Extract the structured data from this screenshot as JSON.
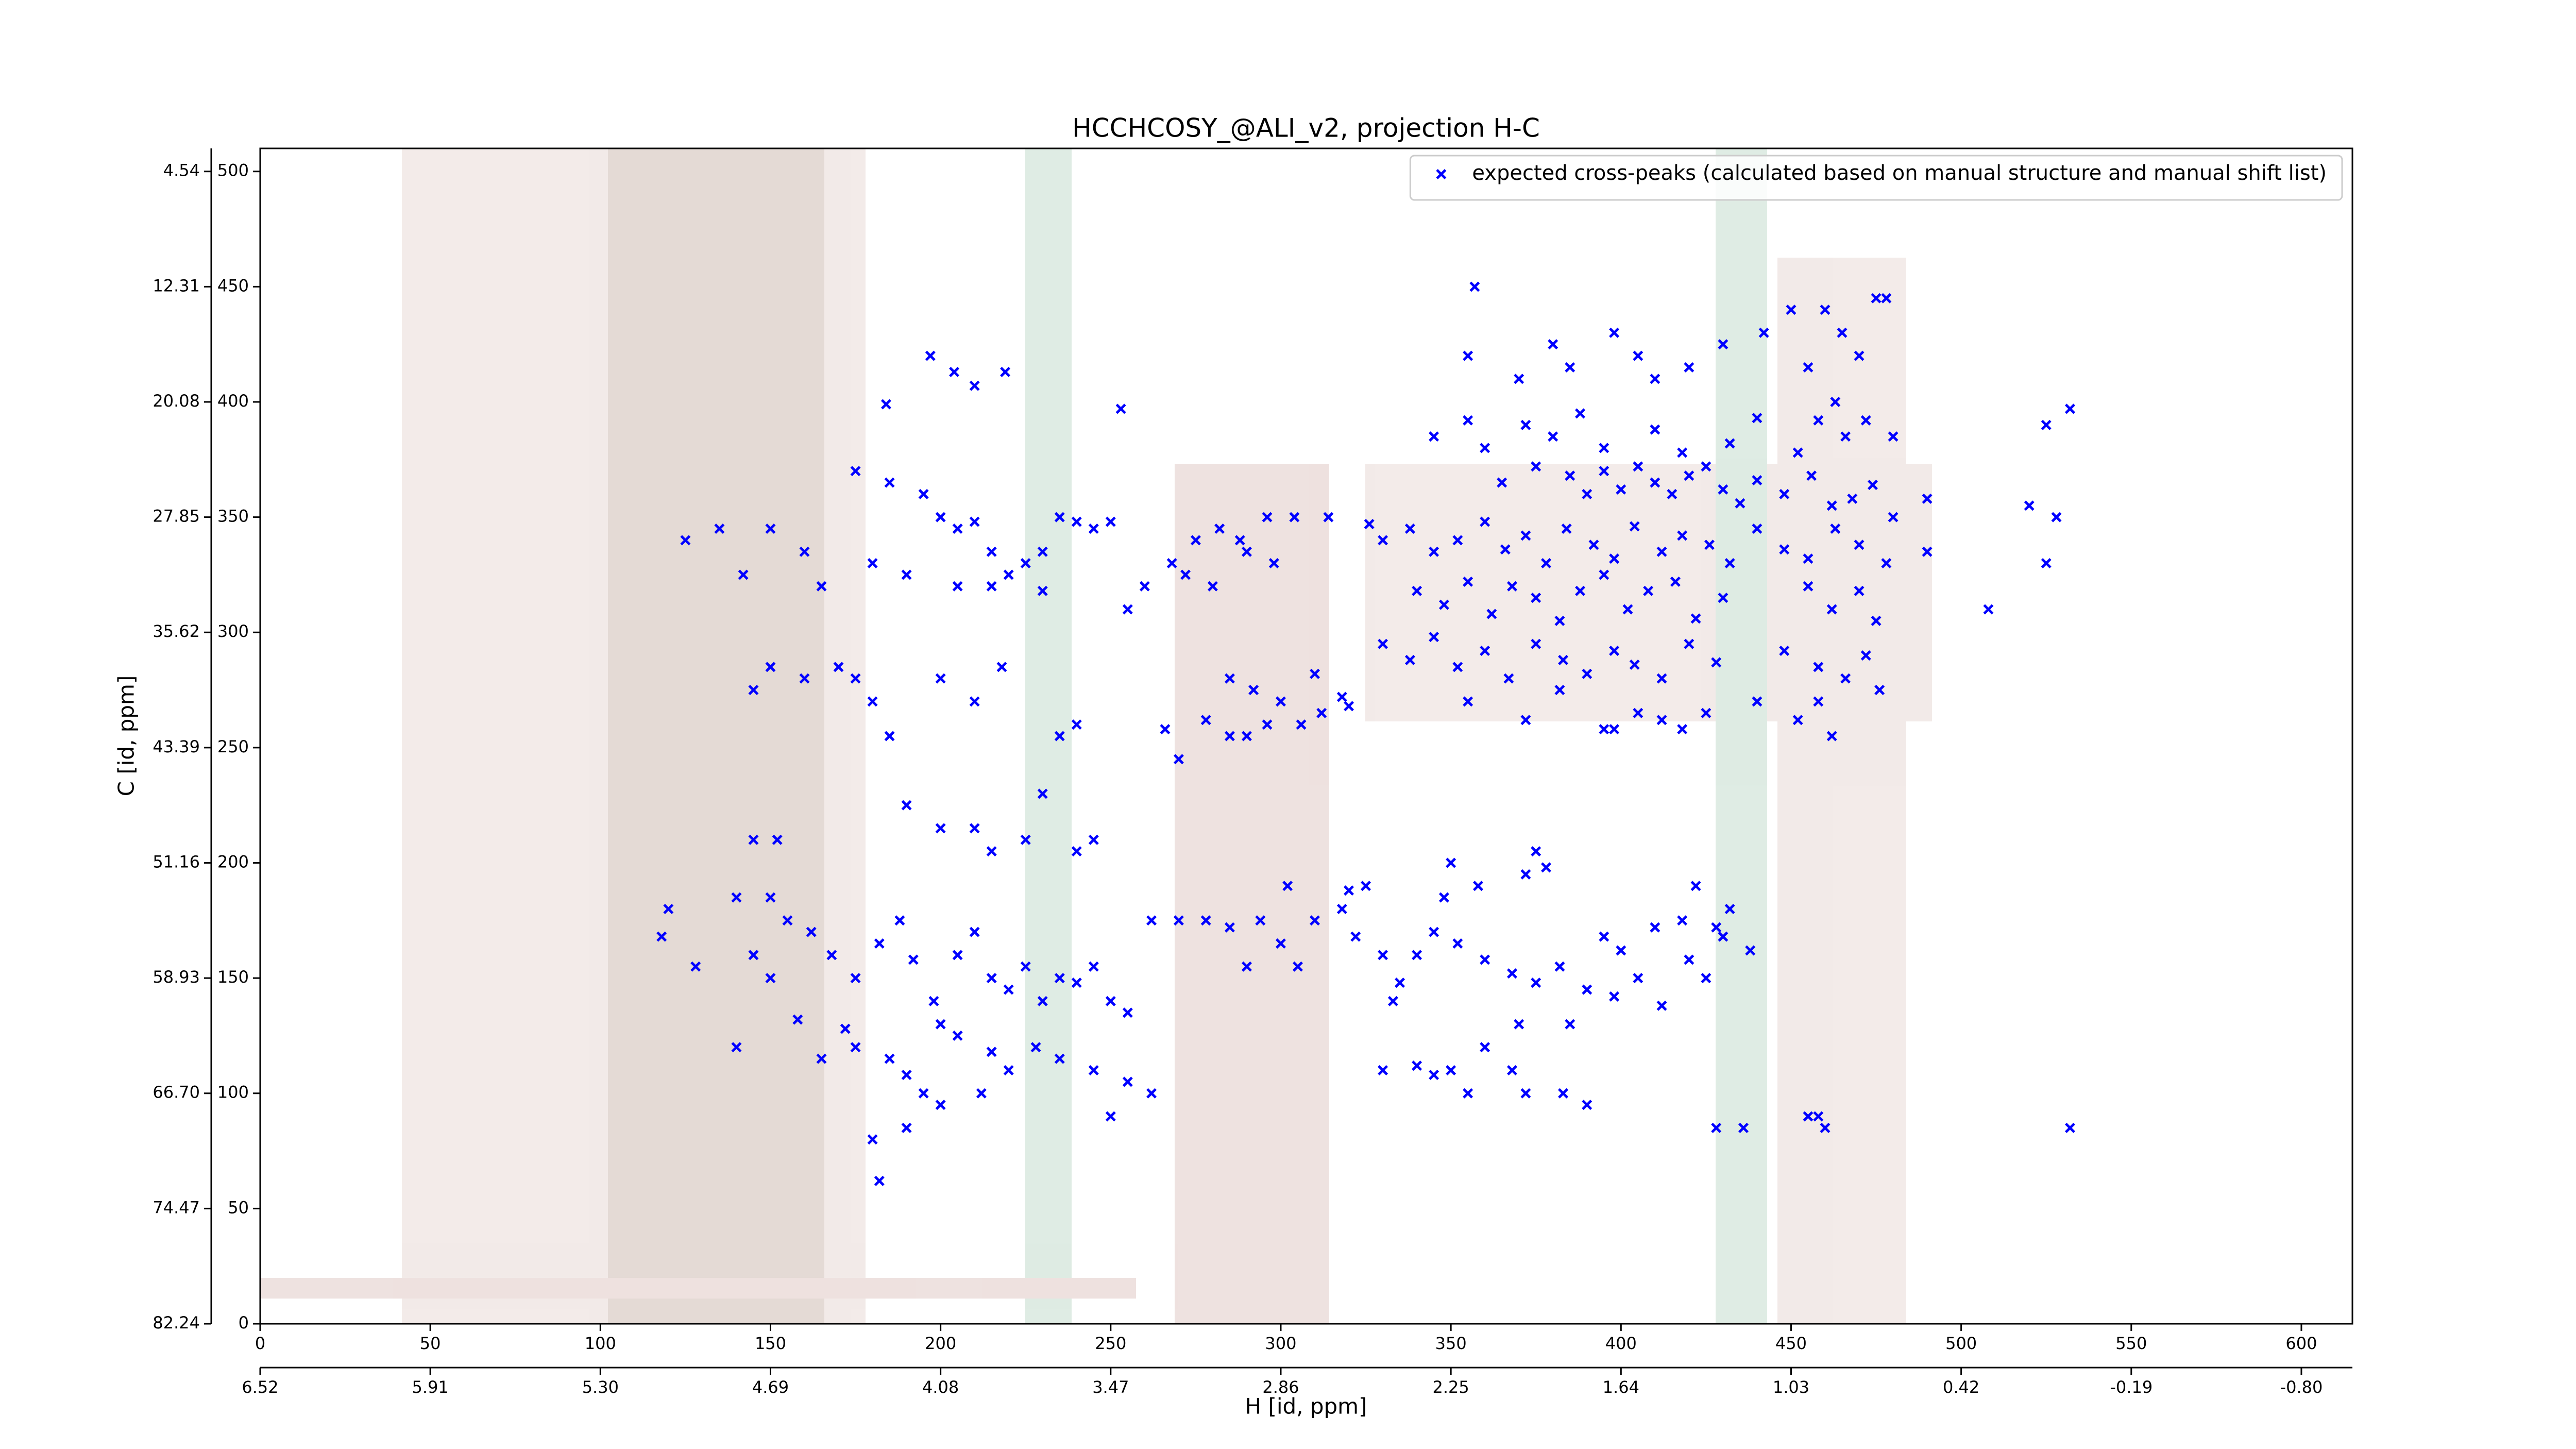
{
  "chart_data": {
    "type": "scatter",
    "title": "HCCHCOSY_@ALI_v2, projection H-C",
    "xlabel": "H [id, ppm]",
    "ylabel": "C [id, ppm]",
    "xlim": [
      0,
      615
    ],
    "ylim": [
      0,
      510
    ],
    "xticks": [
      0,
      50,
      100,
      150,
      200,
      250,
      300,
      350,
      400,
      450,
      500,
      550,
      600
    ],
    "yticks": [
      0,
      50,
      100,
      150,
      200,
      250,
      300,
      350,
      400,
      450,
      500
    ],
    "x2ticks": [
      {
        "value": 0,
        "label": "6.52"
      },
      {
        "value": 50,
        "label": "5.91"
      },
      {
        "value": 100,
        "label": "5.30"
      },
      {
        "value": 150,
        "label": "4.69"
      },
      {
        "value": 200,
        "label": "4.08"
      },
      {
        "value": 250,
        "label": "3.47"
      },
      {
        "value": 300,
        "label": "2.86"
      },
      {
        "value": 350,
        "label": "2.25"
      },
      {
        "value": 400,
        "label": "1.64"
      },
      {
        "value": 450,
        "label": "1.03"
      },
      {
        "value": 500,
        "label": "0.42"
      },
      {
        "value": 550,
        "label": "-0.19"
      },
      {
        "value": 600,
        "label": "-0.80"
      }
    ],
    "y2ticks": [
      {
        "value": 0,
        "label": "82.24"
      },
      {
        "value": 50,
        "label": "74.47"
      },
      {
        "value": 100,
        "label": "66.70"
      },
      {
        "value": 150,
        "label": "58.93"
      },
      {
        "value": 200,
        "label": "51.16"
      },
      {
        "value": 250,
        "label": "43.39"
      },
      {
        "value": 300,
        "label": "35.62"
      },
      {
        "value": 350,
        "label": "27.85"
      },
      {
        "value": 400,
        "label": "20.08"
      },
      {
        "value": 450,
        "label": "12.31"
      },
      {
        "value": 500,
        "label": "4.54"
      }
    ],
    "grid": false,
    "legend": "upper right",
    "series": [
      {
        "name": "expected cross-peaks (calculated based on manual structure and manual shift list)",
        "color": "#0000ff",
        "x": [
          357,
          253,
          532,
          532,
          197,
          204,
          210,
          219,
          184,
          355,
          370,
          380,
          385,
          398,
          405,
          410,
          420,
          430,
          442,
          450,
          460,
          465,
          470,
          475,
          478,
          455,
          463,
          345,
          355,
          360,
          372,
          380,
          388,
          395,
          410,
          418,
          432,
          440,
          452,
          458,
          466,
          472,
          480,
          525,
          365,
          375,
          385,
          390,
          395,
          400,
          405,
          410,
          415,
          420,
          425,
          430,
          435,
          440,
          448,
          456,
          462,
          468,
          474,
          480,
          490,
          520,
          528,
          330,
          338,
          345,
          352,
          360,
          366,
          372,
          378,
          384,
          392,
          398,
          404,
          412,
          418,
          426,
          432,
          440,
          448,
          455,
          463,
          470,
          478,
          490,
          525,
          340,
          348,
          355,
          362,
          368,
          375,
          382,
          388,
          395,
          402,
          408,
          416,
          422,
          430,
          455,
          462,
          470,
          475,
          508,
          330,
          338,
          345,
          352,
          360,
          367,
          375,
          383,
          390,
          398,
          404,
          412,
          420,
          428,
          448,
          458,
          466,
          472,
          476,
          355,
          372,
          382,
          395,
          398,
          405,
          412,
          418,
          425,
          440,
          452,
          458,
          462,
          275,
          282,
          288,
          296,
          304,
          314,
          326,
          290,
          298,
          268,
          272,
          280,
          260,
          255,
          285,
          292,
          300,
          310,
          318,
          306,
          296,
          278,
          285,
          290,
          270,
          266,
          312,
          320,
          320,
          318,
          325,
          310,
          302,
          278,
          285,
          294,
          300,
          262,
          270,
          290,
          305,
          322,
          330,
          335,
          340,
          345,
          348,
          350,
          358,
          372,
          375,
          378,
          352,
          360,
          368,
          375,
          382,
          390,
          398,
          405,
          412,
          420,
          425,
          430,
          395,
          400,
          410,
          418,
          428,
          438,
          432,
          422,
          385,
          360,
          368,
          372,
          383,
          390,
          350,
          345,
          340,
          355,
          330,
          333,
          370,
          428,
          436,
          455,
          458,
          460,
          195,
          200,
          205,
          210,
          215,
          220,
          225,
          230,
          235,
          240,
          245,
          250,
          175,
          185,
          180,
          190,
          205,
          215,
          230,
          125,
          135,
          142,
          150,
          160,
          165,
          150,
          145,
          160,
          170,
          180,
          185,
          175,
          200,
          210,
          218,
          240,
          235,
          230,
          210,
          225,
          215,
          240,
          245,
          190,
          200,
          150,
          155,
          162,
          168,
          175,
          182,
          188,
          192,
          198,
          205,
          210,
          215,
          220,
          225,
          230,
          235,
          240,
          245,
          250,
          255,
          200,
          205,
          215,
          220,
          228,
          235,
          190,
          185,
          195,
          200,
          175,
          165,
          158,
          172,
          212,
          245,
          255,
          262,
          250,
          190,
          180,
          182,
          140,
          120,
          118,
          145,
          128,
          150,
          140,
          145,
          152
        ],
        "values": [
          450,
          397,
          397,
          85,
          420,
          413,
          407,
          413,
          399,
          420,
          410,
          425,
          415,
          430,
          420,
          410,
          415,
          425,
          430,
          440,
          440,
          430,
          420,
          445,
          445,
          415,
          400,
          385,
          392,
          380,
          390,
          385,
          395,
          380,
          388,
          378,
          382,
          393,
          378,
          392,
          385,
          392,
          385,
          390,
          365,
          372,
          368,
          360,
          370,
          362,
          372,
          365,
          360,
          368,
          372,
          362,
          356,
          366,
          360,
          368,
          355,
          358,
          364,
          350,
          358,
          355,
          350,
          340,
          345,
          335,
          340,
          348,
          336,
          342,
          330,
          345,
          338,
          332,
          346,
          335,
          342,
          338,
          330,
          345,
          336,
          332,
          345,
          338,
          330,
          335,
          330,
          318,
          312,
          322,
          308,
          320,
          315,
          305,
          318,
          325,
          310,
          318,
          322,
          306,
          315,
          320,
          310,
          318,
          305,
          310,
          295,
          288,
          298,
          285,
          292,
          280,
          295,
          288,
          282,
          292,
          286,
          280,
          295,
          287,
          292,
          285,
          280,
          290,
          275,
          270,
          262,
          275,
          258,
          258,
          265,
          262,
          258,
          265,
          270,
          262,
          270,
          255,
          340,
          345,
          340,
          350,
          350,
          350,
          347,
          335,
          330,
          330,
          325,
          320,
          320,
          310,
          280,
          275,
          270,
          282,
          272,
          260,
          260,
          262,
          255,
          255,
          245,
          258,
          265,
          268,
          188,
          180,
          190,
          175,
          190,
          175,
          172,
          175,
          165,
          175,
          175,
          155,
          155,
          168,
          160,
          148,
          160,
          170,
          185,
          200,
          190,
          195,
          205,
          198,
          165,
          158,
          152,
          148,
          155,
          145,
          142,
          150,
          138,
          158,
          150,
          168,
          168,
          162,
          172,
          175,
          172,
          162,
          180,
          190,
          130,
          120,
          110,
          100,
          100,
          95,
          110,
          108,
          112,
          100,
          110,
          140,
          130,
          85,
          85,
          90,
          90,
          85,
          360,
          350,
          345,
          348,
          335,
          325,
          330,
          335,
          350,
          348,
          345,
          348,
          370,
          365,
          330,
          325,
          320,
          320,
          318,
          340,
          345,
          325,
          345,
          335,
          320,
          285,
          275,
          280,
          285,
          270,
          255,
          280,
          280,
          270,
          285,
          260,
          255,
          230,
          215,
          210,
          205,
          205,
          210,
          225,
          215,
          185,
          175,
          170,
          160,
          150,
          165,
          175,
          158,
          140,
          160,
          170,
          150,
          145,
          155,
          140,
          150,
          148,
          155,
          140,
          135,
          130,
          125,
          118,
          110,
          120,
          115,
          108,
          115,
          100,
          95,
          120,
          115,
          132,
          128,
          100,
          110,
          105,
          100,
          90,
          85,
          80,
          62,
          185,
          180,
          168,
          160,
          155,
          150,
          120,
          210,
          210
        ]
      }
    ]
  }
}
